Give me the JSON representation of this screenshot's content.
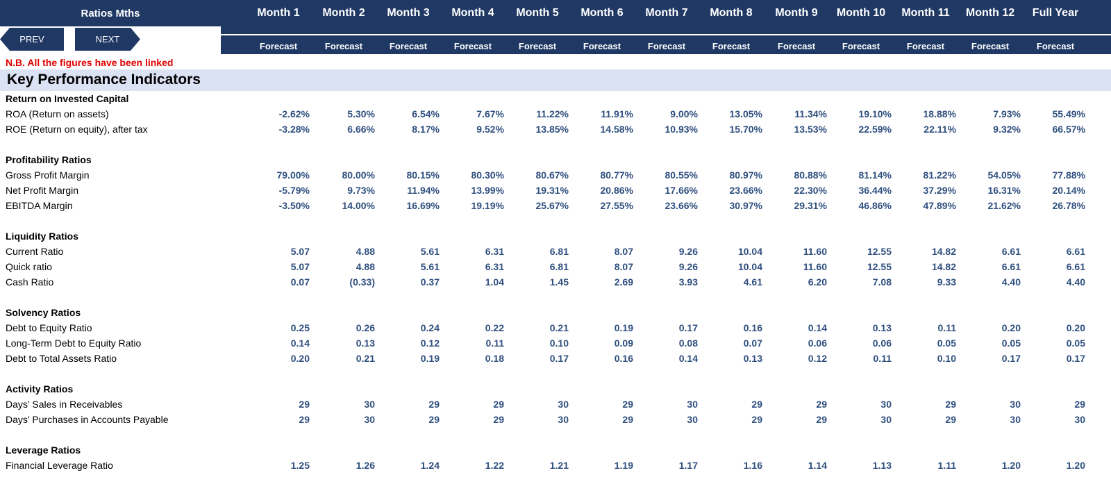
{
  "header": {
    "title": "Ratios Mths",
    "columns": [
      "Month 1",
      "Month 2",
      "Month 3",
      "Month 4",
      "Month 5",
      "Month 6",
      "Month 7",
      "Month 8",
      "Month 9",
      "Month 10",
      "Month 11",
      "Month 12",
      "Full Year"
    ],
    "subheader": [
      "Forecast",
      "Forecast",
      "Forecast",
      "Forecast",
      "Forecast",
      "Forecast",
      "Forecast",
      "Forecast",
      "Forecast",
      "Forecast",
      "Forecast",
      "Forecast",
      "Forecast"
    ]
  },
  "nav": {
    "prev": "PREV",
    "next": "NEXT"
  },
  "note": "N.B. All the figures have been linked",
  "kpi_title": "Key Performance Indicators",
  "rows": [
    {
      "type": "section",
      "label": "Return on Invested Capital"
    },
    {
      "type": "data",
      "label": "ROA (Return on assets)",
      "values": [
        "-2.62%",
        "5.30%",
        "6.54%",
        "7.67%",
        "11.22%",
        "11.91%",
        "9.00%",
        "13.05%",
        "11.34%",
        "19.10%",
        "18.88%",
        "7.93%",
        "55.49%"
      ]
    },
    {
      "type": "data",
      "label": "ROE (Return on equity), after tax",
      "values": [
        "-3.28%",
        "6.66%",
        "8.17%",
        "9.52%",
        "13.85%",
        "14.58%",
        "10.93%",
        "15.70%",
        "13.53%",
        "22.59%",
        "22.11%",
        "9.32%",
        "66.57%"
      ]
    },
    {
      "type": "blank"
    },
    {
      "type": "section",
      "label": "Profitability Ratios"
    },
    {
      "type": "data",
      "label": "Gross Profit Margin",
      "values": [
        "79.00%",
        "80.00%",
        "80.15%",
        "80.30%",
        "80.67%",
        "80.77%",
        "80.55%",
        "80.97%",
        "80.88%",
        "81.14%",
        "81.22%",
        "54.05%",
        "77.88%"
      ]
    },
    {
      "type": "data",
      "label": "Net Profit Margin",
      "values": [
        "-5.79%",
        "9.73%",
        "11.94%",
        "13.99%",
        "19.31%",
        "20.86%",
        "17.66%",
        "23.66%",
        "22.30%",
        "36.44%",
        "37.29%",
        "16.31%",
        "20.14%"
      ]
    },
    {
      "type": "data",
      "label": "EBITDA Margin",
      "values": [
        "-3.50%",
        "14.00%",
        "16.69%",
        "19.19%",
        "25.67%",
        "27.55%",
        "23.66%",
        "30.97%",
        "29.31%",
        "46.86%",
        "47.89%",
        "21.62%",
        "26.78%"
      ]
    },
    {
      "type": "blank"
    },
    {
      "type": "section",
      "label": "Liquidity Ratios"
    },
    {
      "type": "data",
      "label": "Current Ratio",
      "values": [
        "5.07",
        "4.88",
        "5.61",
        "6.31",
        "6.81",
        "8.07",
        "9.26",
        "10.04",
        "11.60",
        "12.55",
        "14.82",
        "6.61",
        "6.61"
      ]
    },
    {
      "type": "data",
      "label": "Quick ratio",
      "values": [
        "5.07",
        "4.88",
        "5.61",
        "6.31",
        "6.81",
        "8.07",
        "9.26",
        "10.04",
        "11.60",
        "12.55",
        "14.82",
        "6.61",
        "6.61"
      ]
    },
    {
      "type": "data",
      "label": "Cash Ratio",
      "values": [
        "0.07",
        "(0.33)",
        "0.37",
        "1.04",
        "1.45",
        "2.69",
        "3.93",
        "4.61",
        "6.20",
        "7.08",
        "9.33",
        "4.40",
        "4.40"
      ]
    },
    {
      "type": "blank"
    },
    {
      "type": "section",
      "label": " Solvency Ratios"
    },
    {
      "type": "data",
      "label": "Debt to Equity Ratio",
      "values": [
        "0.25",
        "0.26",
        "0.24",
        "0.22",
        "0.21",
        "0.19",
        "0.17",
        "0.16",
        "0.14",
        "0.13",
        "0.11",
        "0.20",
        "0.20"
      ]
    },
    {
      "type": "data",
      "label": "Long-Term Debt to Equity Ratio",
      "values": [
        "0.14",
        "0.13",
        "0.12",
        "0.11",
        "0.10",
        "0.09",
        "0.08",
        "0.07",
        "0.06",
        "0.06",
        "0.05",
        "0.05",
        "0.05"
      ]
    },
    {
      "type": "data",
      "label": "Debt to Total Assets Ratio",
      "values": [
        "0.20",
        "0.21",
        "0.19",
        "0.18",
        "0.17",
        "0.16",
        "0.14",
        "0.13",
        "0.12",
        "0.11",
        "0.10",
        "0.17",
        "0.17"
      ]
    },
    {
      "type": "blank"
    },
    {
      "type": "section",
      "label": "Activity Ratios"
    },
    {
      "type": "data",
      "label": "Days’ Sales in Receivables",
      "values": [
        "29",
        "30",
        "29",
        "29",
        "30",
        "29",
        "30",
        "29",
        "29",
        "30",
        "29",
        "30",
        "29"
      ]
    },
    {
      "type": "data",
      "label": "Days’ Purchases in Accounts Payable",
      "values": [
        "29",
        "30",
        "29",
        "29",
        "30",
        "29",
        "30",
        "29",
        "29",
        "30",
        "29",
        "30",
        "30"
      ]
    },
    {
      "type": "blank"
    },
    {
      "type": "section",
      "label": "Leverage Ratios"
    },
    {
      "type": "data",
      "label": "Financial Leverage Ratio",
      "values": [
        "1.25",
        "1.26",
        "1.24",
        "1.22",
        "1.21",
        "1.19",
        "1.17",
        "1.16",
        "1.14",
        "1.13",
        "1.11",
        "1.20",
        "1.20"
      ]
    }
  ]
}
